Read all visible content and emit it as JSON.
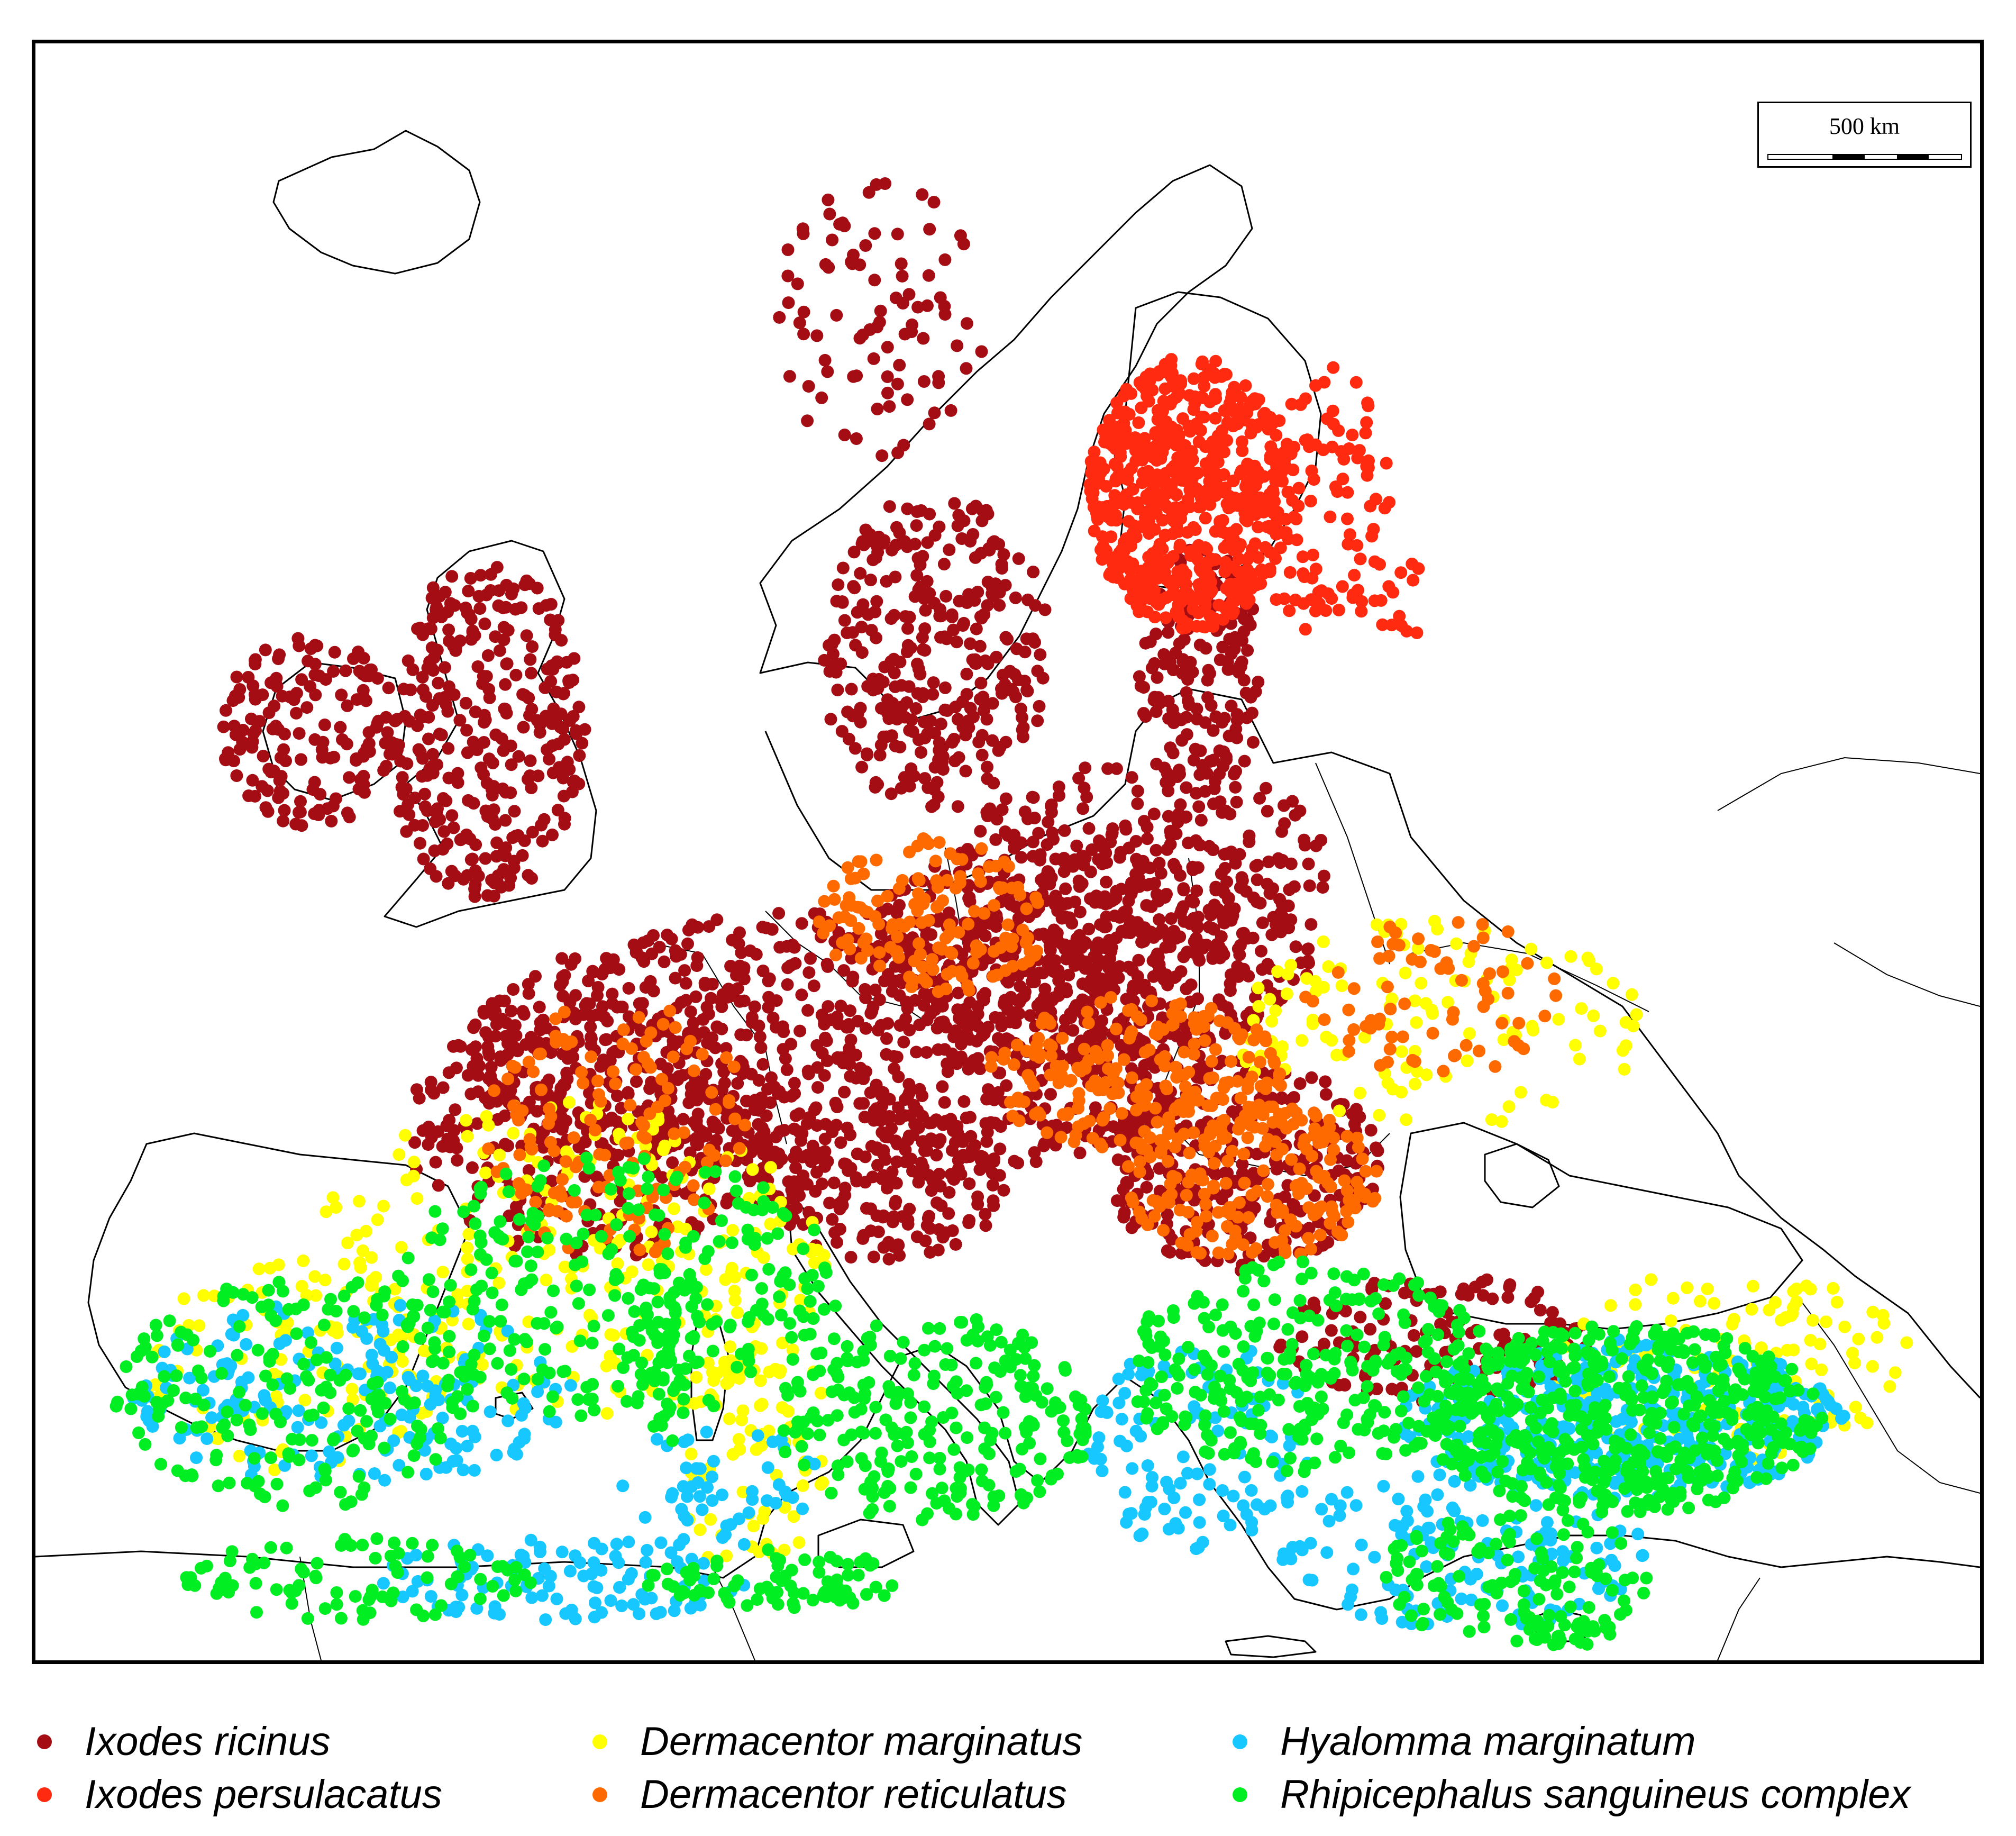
{
  "scale": {
    "label": "500 km"
  },
  "legend": [
    {
      "name": "Ixodes ricinus",
      "color": "#a50d14"
    },
    {
      "name": "Ixodes persulacatus",
      "color": "#ff2a10"
    },
    {
      "name": "Dermacentor marginatus",
      "color": "#ffff00"
    },
    {
      "name": "Dermacentor reticulatus",
      "color": "#ff6a00"
    },
    {
      "name": "Hyalomma marginatum",
      "color": "#16c8ff"
    },
    {
      "name": "Rhipicephalus sanguineus complex",
      "color": "#00ee22"
    }
  ],
  "colors": {
    "frame": "#000000",
    "coastline": "#000000",
    "background": "#ffffff"
  }
}
